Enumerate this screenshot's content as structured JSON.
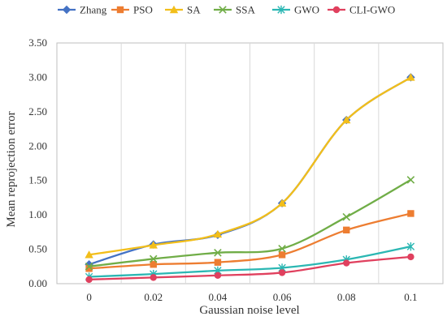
{
  "chart_data": {
    "type": "line",
    "title": "",
    "xlabel": "Gaussian noise level",
    "ylabel": "Mean reprojection error",
    "categories": [
      "0",
      "0.02",
      "0.04",
      "0.06",
      "0.08",
      "0.1"
    ],
    "y_ticks": [
      "0.00",
      "0.50",
      "1.00",
      "1.50",
      "2.00",
      "2.50",
      "3.00",
      "3.50"
    ],
    "ylim": [
      0,
      3.5
    ],
    "grid": "vertical",
    "legend_position": "top",
    "series": [
      {
        "name": "Zhang",
        "color": "#4472C4",
        "marker": "diamond",
        "values": [
          0.28,
          0.57,
          0.71,
          1.17,
          2.38,
          3.0
        ]
      },
      {
        "name": "PSO",
        "color": "#ED7D31",
        "marker": "square",
        "values": [
          0.22,
          0.28,
          0.31,
          0.42,
          0.78,
          1.02
        ]
      },
      {
        "name": "SA",
        "color": "#F2BE1A",
        "marker": "triangle",
        "values": [
          0.42,
          0.56,
          0.72,
          1.17,
          2.38,
          3.0
        ]
      },
      {
        "name": "SSA",
        "color": "#70AD47",
        "marker": "x",
        "values": [
          0.25,
          0.36,
          0.45,
          0.51,
          0.97,
          1.51
        ]
      },
      {
        "name": "GWO",
        "color": "#2BB7B3",
        "marker": "star",
        "values": [
          0.1,
          0.14,
          0.19,
          0.23,
          0.35,
          0.54
        ]
      },
      {
        "name": "CLI-GWO",
        "color": "#E0405E",
        "marker": "circle",
        "values": [
          0.06,
          0.09,
          0.12,
          0.16,
          0.3,
          0.39
        ]
      }
    ]
  }
}
